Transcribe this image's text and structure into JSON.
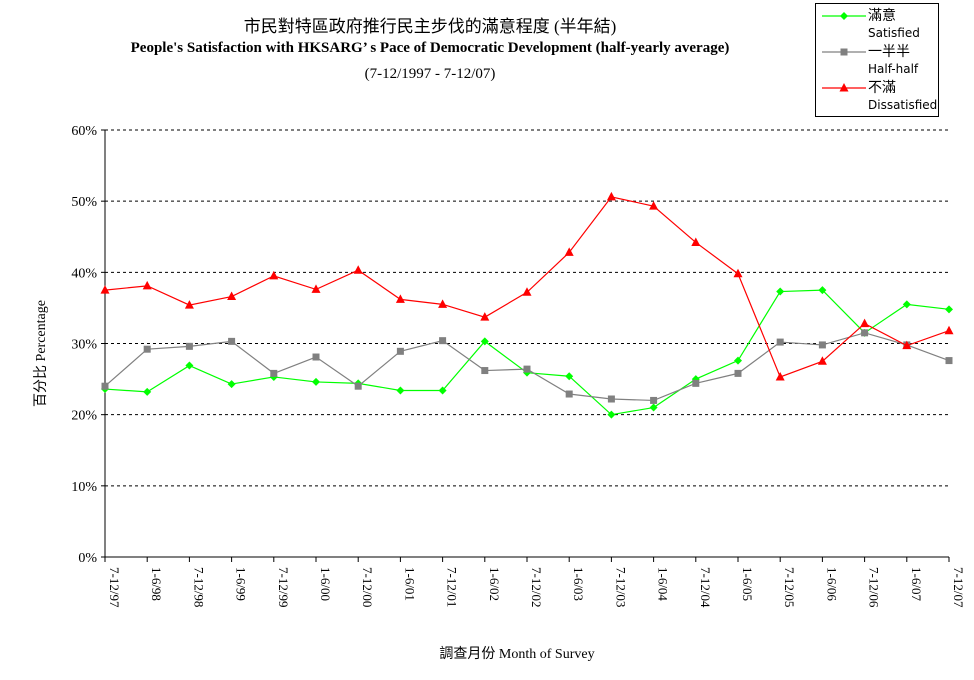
{
  "chart_data": {
    "type": "line",
    "title": "市民對特區政府推行民主步伐的滿意程度 (半年結)",
    "subtitle_en": "People's Satisfaction with HKSARG’ s Pace of Democratic Development (half-yearly average)",
    "period": "(7-12/1997 - 7-12/07)",
    "xlabel": "調查月份 Month of Survey",
    "ylabel": "百分比 Percentage",
    "ylim": [
      0,
      60
    ],
    "yticks": [
      "0%",
      "10%",
      "20%",
      "30%",
      "40%",
      "50%",
      "60%"
    ],
    "ytick_values": [
      0,
      10,
      20,
      30,
      40,
      50,
      60
    ],
    "grid": "horizontal dashed",
    "legend_position": "top-right",
    "categories": [
      "7-12/97",
      "1-6/98",
      "7-12/98",
      "1-6/99",
      "7-12/99",
      "1-6/00",
      "7-12/00",
      "1-6/01",
      "7-12/01",
      "1-6/02",
      "7-12/02",
      "1-6/03",
      "7-12/03",
      "1-6/04",
      "7-12/04",
      "1-6/05",
      "7-12/05",
      "1-6/06",
      "7-12/06",
      "1-6/07",
      "7-12/07"
    ],
    "series": [
      {
        "name_zh": "滿意",
        "name_en": "Satisfied",
        "color": "#00ff00",
        "marker": "diamond",
        "values": [
          23.6,
          23.2,
          26.9,
          24.3,
          25.3,
          24.6,
          24.4,
          23.4,
          23.4,
          30.3,
          25.9,
          25.4,
          20.0,
          21.0,
          25.0,
          27.6,
          37.3,
          37.5,
          31.5,
          35.5,
          34.8
        ]
      },
      {
        "name_zh": "一半半",
        "name_en": "Half-half",
        "color": "#808080",
        "marker": "square",
        "values": [
          24.0,
          29.2,
          29.6,
          30.3,
          25.8,
          28.1,
          24.0,
          28.9,
          30.4,
          26.2,
          26.4,
          22.9,
          22.2,
          22.0,
          24.4,
          25.8,
          30.2,
          29.8,
          31.5,
          29.8,
          27.6
        ]
      },
      {
        "name_zh": "不滿",
        "name_en": "Dissatisfied",
        "color": "#ff0000",
        "marker": "triangle",
        "values": [
          37.5,
          38.1,
          35.4,
          36.6,
          39.5,
          37.6,
          40.3,
          36.2,
          35.5,
          33.7,
          37.2,
          42.8,
          50.6,
          49.3,
          44.2,
          39.8,
          25.3,
          27.5,
          32.8,
          29.7,
          31.8
        ]
      }
    ]
  }
}
